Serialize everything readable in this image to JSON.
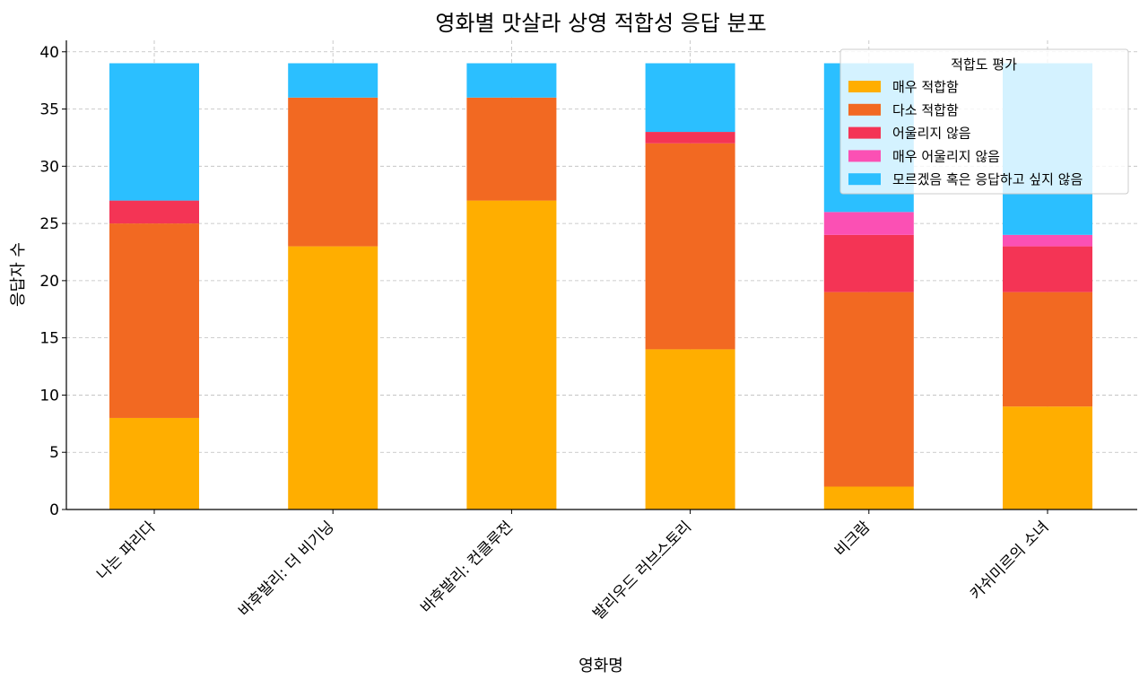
{
  "chart_data": {
    "type": "bar",
    "stacked": true,
    "title": "영화별 맛살라 상영 적합성 응답 분포",
    "xlabel": "영화명",
    "ylabel": "응답자 수",
    "ylim": [
      0,
      41
    ],
    "yticks": [
      0,
      5,
      10,
      15,
      20,
      25,
      30,
      35,
      40
    ],
    "grid": true,
    "legend": {
      "title": "적합도 평가",
      "placement": "top-right"
    },
    "categories": [
      "나는 파리다",
      "바후발리: 더 비기닝",
      "바후발리: 컨클루전",
      "발리우드 러브스토리",
      "비크람",
      "카쉬미르의 소녀"
    ],
    "series": [
      {
        "name": "매우 적합함",
        "color": "#FFAE00",
        "values": [
          8,
          23,
          27,
          14,
          2,
          9
        ]
      },
      {
        "name": "다소 적합함",
        "color": "#F26922",
        "values": [
          17,
          13,
          9,
          18,
          17,
          10
        ]
      },
      {
        "name": "어울리지 않음",
        "color": "#F43455",
        "values": [
          2,
          0,
          0,
          1,
          5,
          4
        ]
      },
      {
        "name": "매우 어울리지 않음",
        "color": "#FB50B4",
        "values": [
          0,
          0,
          0,
          0,
          2,
          1
        ]
      },
      {
        "name": "모르겠음 혹은 응답하고 싶지 않음",
        "color": "#2BBFFF",
        "values": [
          12,
          3,
          3,
          6,
          13,
          15
        ]
      }
    ]
  }
}
